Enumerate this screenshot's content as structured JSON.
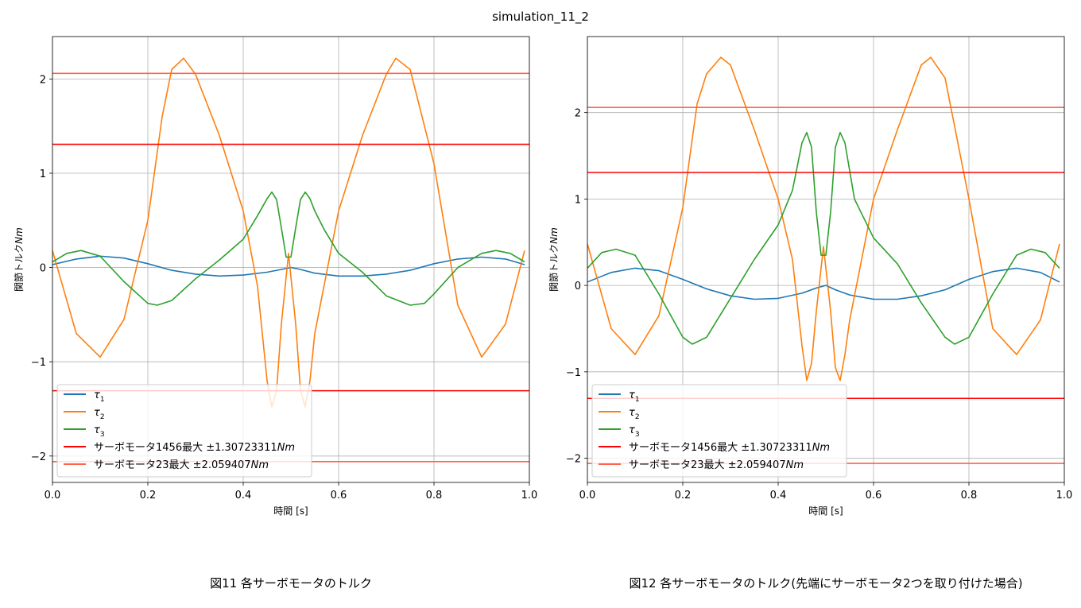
{
  "figure_title": "simulation_11_2",
  "colors": {
    "tau1": "#1f77b4",
    "tau2": "#ff7f0e",
    "tau3": "#2ca02c",
    "servo1456": "#ff0000",
    "servo23": "#ff6347",
    "grid": "#b0b0b0"
  },
  "chart_data": [
    {
      "type": "line",
      "title": "",
      "caption": "図11 各サーボモータのトルク",
      "xlabel": "時間 [s]",
      "ylabel": "関節トルク",
      "ylabel_unit": "Nm",
      "xlim": [
        0.0,
        1.0
      ],
      "ylim": [
        -2.28,
        2.45
      ],
      "xticks": [
        0.0,
        0.2,
        0.4,
        0.6,
        0.8,
        1.0
      ],
      "xtick_labels": [
        "0.0",
        "0.2",
        "0.4",
        "0.6",
        "0.8",
        "1.0"
      ],
      "yticks": [
        -2,
        -1,
        0,
        1,
        2
      ],
      "ytick_labels": [
        "−2",
        "−1",
        "0",
        "1",
        "2"
      ],
      "grid": true,
      "legend_position": "lower-left",
      "series": [
        {
          "name": "τ",
          "subscript": "1",
          "key": "tau1",
          "kind": "curve",
          "x": [
            0,
            0.05,
            0.1,
            0.15,
            0.2,
            0.25,
            0.3,
            0.35,
            0.4,
            0.45,
            0.48,
            0.5,
            0.52,
            0.55,
            0.6,
            0.65,
            0.7,
            0.75,
            0.8,
            0.85,
            0.9,
            0.95,
            0.99
          ],
          "y": [
            0.03,
            0.09,
            0.12,
            0.1,
            0.04,
            -0.03,
            -0.07,
            -0.09,
            -0.08,
            -0.05,
            -0.02,
            0.0,
            -0.02,
            -0.06,
            -0.09,
            -0.09,
            -0.07,
            -0.03,
            0.04,
            0.09,
            0.11,
            0.09,
            0.03
          ]
        },
        {
          "name": "τ",
          "subscript": "2",
          "key": "tau2",
          "kind": "curve",
          "x": [
            0,
            0.05,
            0.1,
            0.15,
            0.2,
            0.23,
            0.25,
            0.275,
            0.3,
            0.35,
            0.4,
            0.43,
            0.45,
            0.46,
            0.47,
            0.48,
            0.495,
            0.51,
            0.52,
            0.53,
            0.54,
            0.55,
            0.6,
            0.65,
            0.7,
            0.72,
            0.75,
            0.8,
            0.85,
            0.9,
            0.95,
            0.99
          ],
          "y": [
            0.18,
            -0.7,
            -0.95,
            -0.55,
            0.5,
            1.6,
            2.1,
            2.22,
            2.05,
            1.4,
            0.6,
            -0.2,
            -1.2,
            -1.48,
            -1.3,
            -0.6,
            0.15,
            -0.6,
            -1.3,
            -1.48,
            -1.2,
            -0.7,
            0.6,
            1.4,
            2.05,
            2.22,
            2.1,
            1.1,
            -0.4,
            -0.95,
            -0.6,
            0.18
          ]
        },
        {
          "name": "τ",
          "subscript": "3",
          "key": "tau3",
          "kind": "curve",
          "x": [
            0,
            0.03,
            0.06,
            0.1,
            0.15,
            0.2,
            0.22,
            0.25,
            0.3,
            0.35,
            0.4,
            0.43,
            0.45,
            0.46,
            0.47,
            0.48,
            0.49,
            0.5,
            0.51,
            0.52,
            0.53,
            0.54,
            0.55,
            0.57,
            0.6,
            0.65,
            0.7,
            0.75,
            0.78,
            0.8,
            0.85,
            0.9,
            0.93,
            0.96,
            0.99
          ],
          "y": [
            0.06,
            0.15,
            0.18,
            0.12,
            -0.15,
            -0.38,
            -0.4,
            -0.35,
            -0.12,
            0.08,
            0.3,
            0.55,
            0.73,
            0.8,
            0.72,
            0.42,
            0.11,
            0.11,
            0.42,
            0.72,
            0.8,
            0.73,
            0.6,
            0.4,
            0.15,
            -0.05,
            -0.3,
            -0.4,
            -0.38,
            -0.28,
            0.0,
            0.15,
            0.18,
            0.15,
            0.06
          ]
        },
        {
          "name": "サーボモータ1456最大 ±1.30723311",
          "unit": "Nm",
          "key": "servo1456",
          "kind": "hline",
          "values": [
            1.30723311,
            -1.30723311
          ]
        },
        {
          "name": "サーボモータ23最大 ±2.059407",
          "unit": "Nm",
          "key": "servo23",
          "kind": "hline",
          "values": [
            2.059407,
            -2.059407
          ]
        }
      ]
    },
    {
      "type": "line",
      "title": "",
      "caption": "図12 各サーボモータのトルク(先端にサーボモータ2つを取り付けた場合)",
      "xlabel": "時間 [s]",
      "ylabel": "関節トルク",
      "ylabel_unit": "Nm",
      "xlim": [
        0.0,
        1.0
      ],
      "ylim": [
        -2.28,
        2.88
      ],
      "xticks": [
        0.0,
        0.2,
        0.4,
        0.6,
        0.8,
        1.0
      ],
      "xtick_labels": [
        "0.0",
        "0.2",
        "0.4",
        "0.6",
        "0.8",
        "1.0"
      ],
      "yticks": [
        -2,
        -1,
        0,
        1,
        2
      ],
      "ytick_labels": [
        "−2",
        "−1",
        "0",
        "1",
        "2"
      ],
      "grid": true,
      "legend_position": "lower-left",
      "series": [
        {
          "name": "τ",
          "subscript": "1",
          "key": "tau1",
          "kind": "curve",
          "x": [
            0,
            0.05,
            0.1,
            0.15,
            0.2,
            0.25,
            0.3,
            0.35,
            0.4,
            0.45,
            0.48,
            0.5,
            0.52,
            0.55,
            0.6,
            0.65,
            0.7,
            0.75,
            0.8,
            0.85,
            0.9,
            0.95,
            0.99
          ],
          "y": [
            0.04,
            0.15,
            0.2,
            0.17,
            0.07,
            -0.04,
            -0.12,
            -0.16,
            -0.15,
            -0.09,
            -0.03,
            0.0,
            -0.05,
            -0.11,
            -0.16,
            -0.16,
            -0.12,
            -0.05,
            0.07,
            0.16,
            0.2,
            0.15,
            0.04
          ]
        },
        {
          "name": "τ",
          "subscript": "2",
          "key": "tau2",
          "kind": "curve",
          "x": [
            0,
            0.05,
            0.1,
            0.15,
            0.2,
            0.23,
            0.25,
            0.28,
            0.3,
            0.35,
            0.4,
            0.43,
            0.45,
            0.46,
            0.47,
            0.48,
            0.495,
            0.51,
            0.52,
            0.53,
            0.54,
            0.55,
            0.6,
            0.65,
            0.7,
            0.72,
            0.75,
            0.8,
            0.85,
            0.9,
            0.95,
            0.99
          ],
          "y": [
            0.48,
            -0.5,
            -0.8,
            -0.35,
            0.9,
            2.1,
            2.45,
            2.64,
            2.55,
            1.8,
            1.0,
            0.3,
            -0.7,
            -1.1,
            -0.9,
            -0.3,
            0.45,
            -0.3,
            -0.95,
            -1.1,
            -0.8,
            -0.4,
            1.0,
            1.8,
            2.55,
            2.64,
            2.4,
            1.0,
            -0.5,
            -0.8,
            -0.4,
            0.48
          ]
        },
        {
          "name": "τ",
          "subscript": "3",
          "key": "tau3",
          "kind": "curve",
          "x": [
            0,
            0.03,
            0.06,
            0.1,
            0.15,
            0.2,
            0.22,
            0.25,
            0.3,
            0.35,
            0.4,
            0.43,
            0.45,
            0.46,
            0.47,
            0.48,
            0.49,
            0.5,
            0.51,
            0.52,
            0.53,
            0.54,
            0.56,
            0.6,
            0.65,
            0.7,
            0.75,
            0.77,
            0.8,
            0.85,
            0.9,
            0.93,
            0.96,
            0.99
          ],
          "y": [
            0.2,
            0.38,
            0.42,
            0.35,
            -0.1,
            -0.6,
            -0.68,
            -0.6,
            -0.15,
            0.3,
            0.7,
            1.1,
            1.65,
            1.77,
            1.6,
            0.85,
            0.35,
            0.35,
            0.85,
            1.6,
            1.77,
            1.65,
            1.0,
            0.55,
            0.25,
            -0.2,
            -0.6,
            -0.68,
            -0.6,
            -0.1,
            0.35,
            0.42,
            0.38,
            0.2
          ]
        },
        {
          "name": "サーボモータ1456最大 ±1.30723311",
          "unit": "Nm",
          "key": "servo1456",
          "kind": "hline",
          "values": [
            1.30723311,
            -1.30723311
          ]
        },
        {
          "name": "サーボモータ23最大 ±2.059407",
          "unit": "Nm",
          "key": "servo23",
          "kind": "hline",
          "values": [
            2.059407,
            -2.059407
          ]
        }
      ]
    }
  ]
}
